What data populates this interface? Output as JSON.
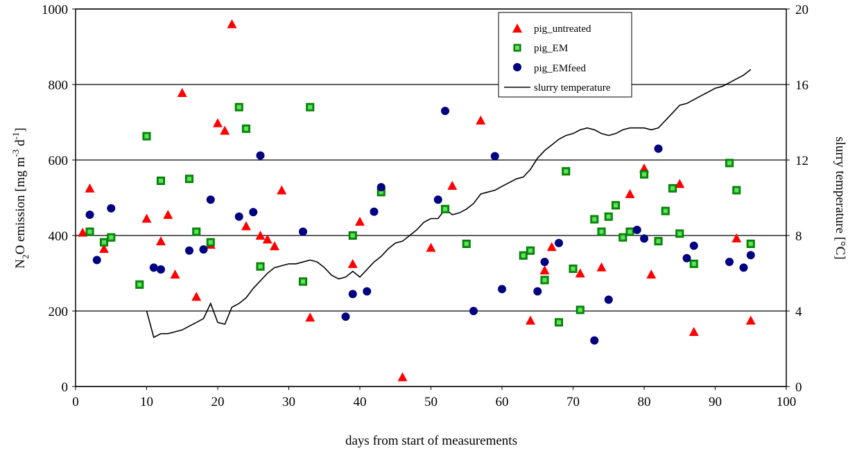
{
  "chart_data": {
    "type": "scatter",
    "xlabel": "days from start of measurements",
    "ylabel_main": "N",
    "ylabel_sub": "2",
    "ylabel_rest": "O emission [mg m",
    "ylabel_sup1": "-3",
    "ylabel_mid": " d",
    "ylabel_sup2": "-1",
    "ylabel_end": "]",
    "y2label": "slurry temperature [°C]",
    "xlim": [
      0,
      100
    ],
    "ylim": [
      0,
      1000
    ],
    "y2lim": [
      0,
      20
    ],
    "x_ticks": [
      "0",
      "10",
      "20",
      "30",
      "40",
      "50",
      "60",
      "70",
      "80",
      "90",
      "100"
    ],
    "y_ticks": [
      "0",
      "200",
      "400",
      "600",
      "800",
      "1000"
    ],
    "y2_ticks": [
      "0",
      "4",
      "8",
      "12",
      "16",
      "20"
    ],
    "grid": "horizontal",
    "legend_position": "top-right",
    "series": [
      {
        "name": "pig_untreated",
        "marker": "triangle",
        "color": "#ff0000",
        "points": [
          [
            1,
            408
          ],
          [
            2,
            525
          ],
          [
            4,
            365
          ],
          [
            10,
            445
          ],
          [
            12,
            385
          ],
          [
            13,
            455
          ],
          [
            14,
            297
          ],
          [
            15,
            778
          ],
          [
            17,
            238
          ],
          [
            19,
            376
          ],
          [
            20,
            698
          ],
          [
            21,
            678
          ],
          [
            22,
            960
          ],
          [
            24,
            425
          ],
          [
            26,
            400
          ],
          [
            27,
            390
          ],
          [
            28,
            372
          ],
          [
            29,
            520
          ],
          [
            33,
            183
          ],
          [
            39,
            325
          ],
          [
            40,
            437
          ],
          [
            46,
            25
          ],
          [
            50,
            368
          ],
          [
            53,
            532
          ],
          [
            57,
            705
          ],
          [
            64,
            175
          ],
          [
            66,
            308
          ],
          [
            67,
            370
          ],
          [
            71,
            300
          ],
          [
            74,
            316
          ],
          [
            78,
            510
          ],
          [
            80,
            578
          ],
          [
            81,
            297
          ],
          [
            85,
            537
          ],
          [
            87,
            145
          ],
          [
            93,
            393
          ],
          [
            95,
            175
          ]
        ]
      },
      {
        "name": "pig_EM",
        "marker": "square",
        "color": "#009900",
        "points": [
          [
            2,
            410
          ],
          [
            4,
            382
          ],
          [
            5,
            395
          ],
          [
            9,
            270
          ],
          [
            10,
            663
          ],
          [
            12,
            545
          ],
          [
            16,
            550
          ],
          [
            17,
            410
          ],
          [
            19,
            382
          ],
          [
            23,
            740
          ],
          [
            24,
            683
          ],
          [
            26,
            318
          ],
          [
            32,
            278
          ],
          [
            33,
            740
          ],
          [
            39,
            400
          ],
          [
            43,
            515
          ],
          [
            52,
            470
          ],
          [
            55,
            378
          ],
          [
            63,
            347
          ],
          [
            64,
            360
          ],
          [
            66,
            282
          ],
          [
            68,
            170
          ],
          [
            69,
            570
          ],
          [
            70,
            312
          ],
          [
            71,
            203
          ],
          [
            73,
            443
          ],
          [
            74,
            410
          ],
          [
            75,
            450
          ],
          [
            76,
            480
          ],
          [
            77,
            395
          ],
          [
            78,
            410
          ],
          [
            80,
            562
          ],
          [
            82,
            385
          ],
          [
            83,
            465
          ],
          [
            84,
            525
          ],
          [
            85,
            405
          ],
          [
            87,
            325
          ],
          [
            92,
            592
          ],
          [
            93,
            520
          ],
          [
            95,
            378
          ]
        ]
      },
      {
        "name": "pig_EMfeed",
        "marker": "circle",
        "color": "#000080",
        "points": [
          [
            2,
            455
          ],
          [
            3,
            335
          ],
          [
            5,
            472
          ],
          [
            11,
            315
          ],
          [
            12,
            310
          ],
          [
            16,
            360
          ],
          [
            18,
            363
          ],
          [
            19,
            495
          ],
          [
            23,
            450
          ],
          [
            25,
            462
          ],
          [
            26,
            612
          ],
          [
            32,
            410
          ],
          [
            38,
            185
          ],
          [
            39,
            245
          ],
          [
            41,
            252
          ],
          [
            42,
            463
          ],
          [
            43,
            528
          ],
          [
            51,
            495
          ],
          [
            52,
            730
          ],
          [
            56,
            200
          ],
          [
            59,
            610
          ],
          [
            60,
            258
          ],
          [
            65,
            252
          ],
          [
            66,
            330
          ],
          [
            68,
            380
          ],
          [
            73,
            122
          ],
          [
            75,
            230
          ],
          [
            79,
            415
          ],
          [
            80,
            392
          ],
          [
            82,
            630
          ],
          [
            86,
            340
          ],
          [
            87,
            373
          ],
          [
            92,
            330
          ],
          [
            94,
            315
          ],
          [
            95,
            348
          ]
        ]
      }
    ],
    "line_series": {
      "name": "slurry temperature",
      "color": "#000000",
      "points": [
        [
          10,
          4.0
        ],
        [
          11,
          2.6
        ],
        [
          12,
          2.8
        ],
        [
          13,
          2.8
        ],
        [
          14,
          2.9
        ],
        [
          15,
          3.0
        ],
        [
          16,
          3.2
        ],
        [
          17,
          3.4
        ],
        [
          18,
          3.6
        ],
        [
          19,
          4.4
        ],
        [
          20,
          3.4
        ],
        [
          21,
          3.3
        ],
        [
          22,
          4.2
        ],
        [
          23,
          4.4
        ],
        [
          24,
          4.7
        ],
        [
          25,
          5.2
        ],
        [
          26,
          5.6
        ],
        [
          27,
          6.0
        ],
        [
          28,
          6.3
        ],
        [
          29,
          6.4
        ],
        [
          30,
          6.5
        ],
        [
          31,
          6.5
        ],
        [
          32,
          6.6
        ],
        [
          33,
          6.7
        ],
        [
          34,
          6.6
        ],
        [
          35,
          6.3
        ],
        [
          36,
          5.9
        ],
        [
          37,
          5.7
        ],
        [
          38,
          5.8
        ],
        [
          39,
          6.1
        ],
        [
          40,
          5.8
        ],
        [
          41,
          6.2
        ],
        [
          42,
          6.6
        ],
        [
          43,
          6.9
        ],
        [
          44,
          7.3
        ],
        [
          45,
          7.6
        ],
        [
          46,
          7.7
        ],
        [
          47,
          8.0
        ],
        [
          48,
          8.3
        ],
        [
          49,
          8.7
        ],
        [
          50,
          8.9
        ],
        [
          51,
          8.9
        ],
        [
          52,
          9.4
        ],
        [
          53,
          9.1
        ],
        [
          54,
          9.2
        ],
        [
          55,
          9.4
        ],
        [
          56,
          9.7
        ],
        [
          57,
          10.2
        ],
        [
          58,
          10.3
        ],
        [
          59,
          10.4
        ],
        [
          60,
          10.6
        ],
        [
          61,
          10.8
        ],
        [
          62,
          11.0
        ],
        [
          63,
          11.1
        ],
        [
          64,
          11.5
        ],
        [
          65,
          12.1
        ],
        [
          66,
          12.5
        ],
        [
          67,
          12.8
        ],
        [
          68,
          13.1
        ],
        [
          69,
          13.3
        ],
        [
          70,
          13.4
        ],
        [
          71,
          13.6
        ],
        [
          72,
          13.7
        ],
        [
          73,
          13.6
        ],
        [
          74,
          13.4
        ],
        [
          75,
          13.3
        ],
        [
          76,
          13.4
        ],
        [
          77,
          13.6
        ],
        [
          78,
          13.7
        ],
        [
          79,
          13.7
        ],
        [
          80,
          13.7
        ],
        [
          81,
          13.6
        ],
        [
          82,
          13.7
        ],
        [
          83,
          14.1
        ],
        [
          84,
          14.5
        ],
        [
          85,
          14.9
        ],
        [
          86,
          15.0
        ],
        [
          87,
          15.2
        ],
        [
          88,
          15.4
        ],
        [
          89,
          15.6
        ],
        [
          90,
          15.8
        ],
        [
          91,
          15.9
        ],
        [
          92,
          16.1
        ],
        [
          93,
          16.3
        ],
        [
          94,
          16.5
        ],
        [
          95,
          16.8
        ]
      ]
    }
  }
}
